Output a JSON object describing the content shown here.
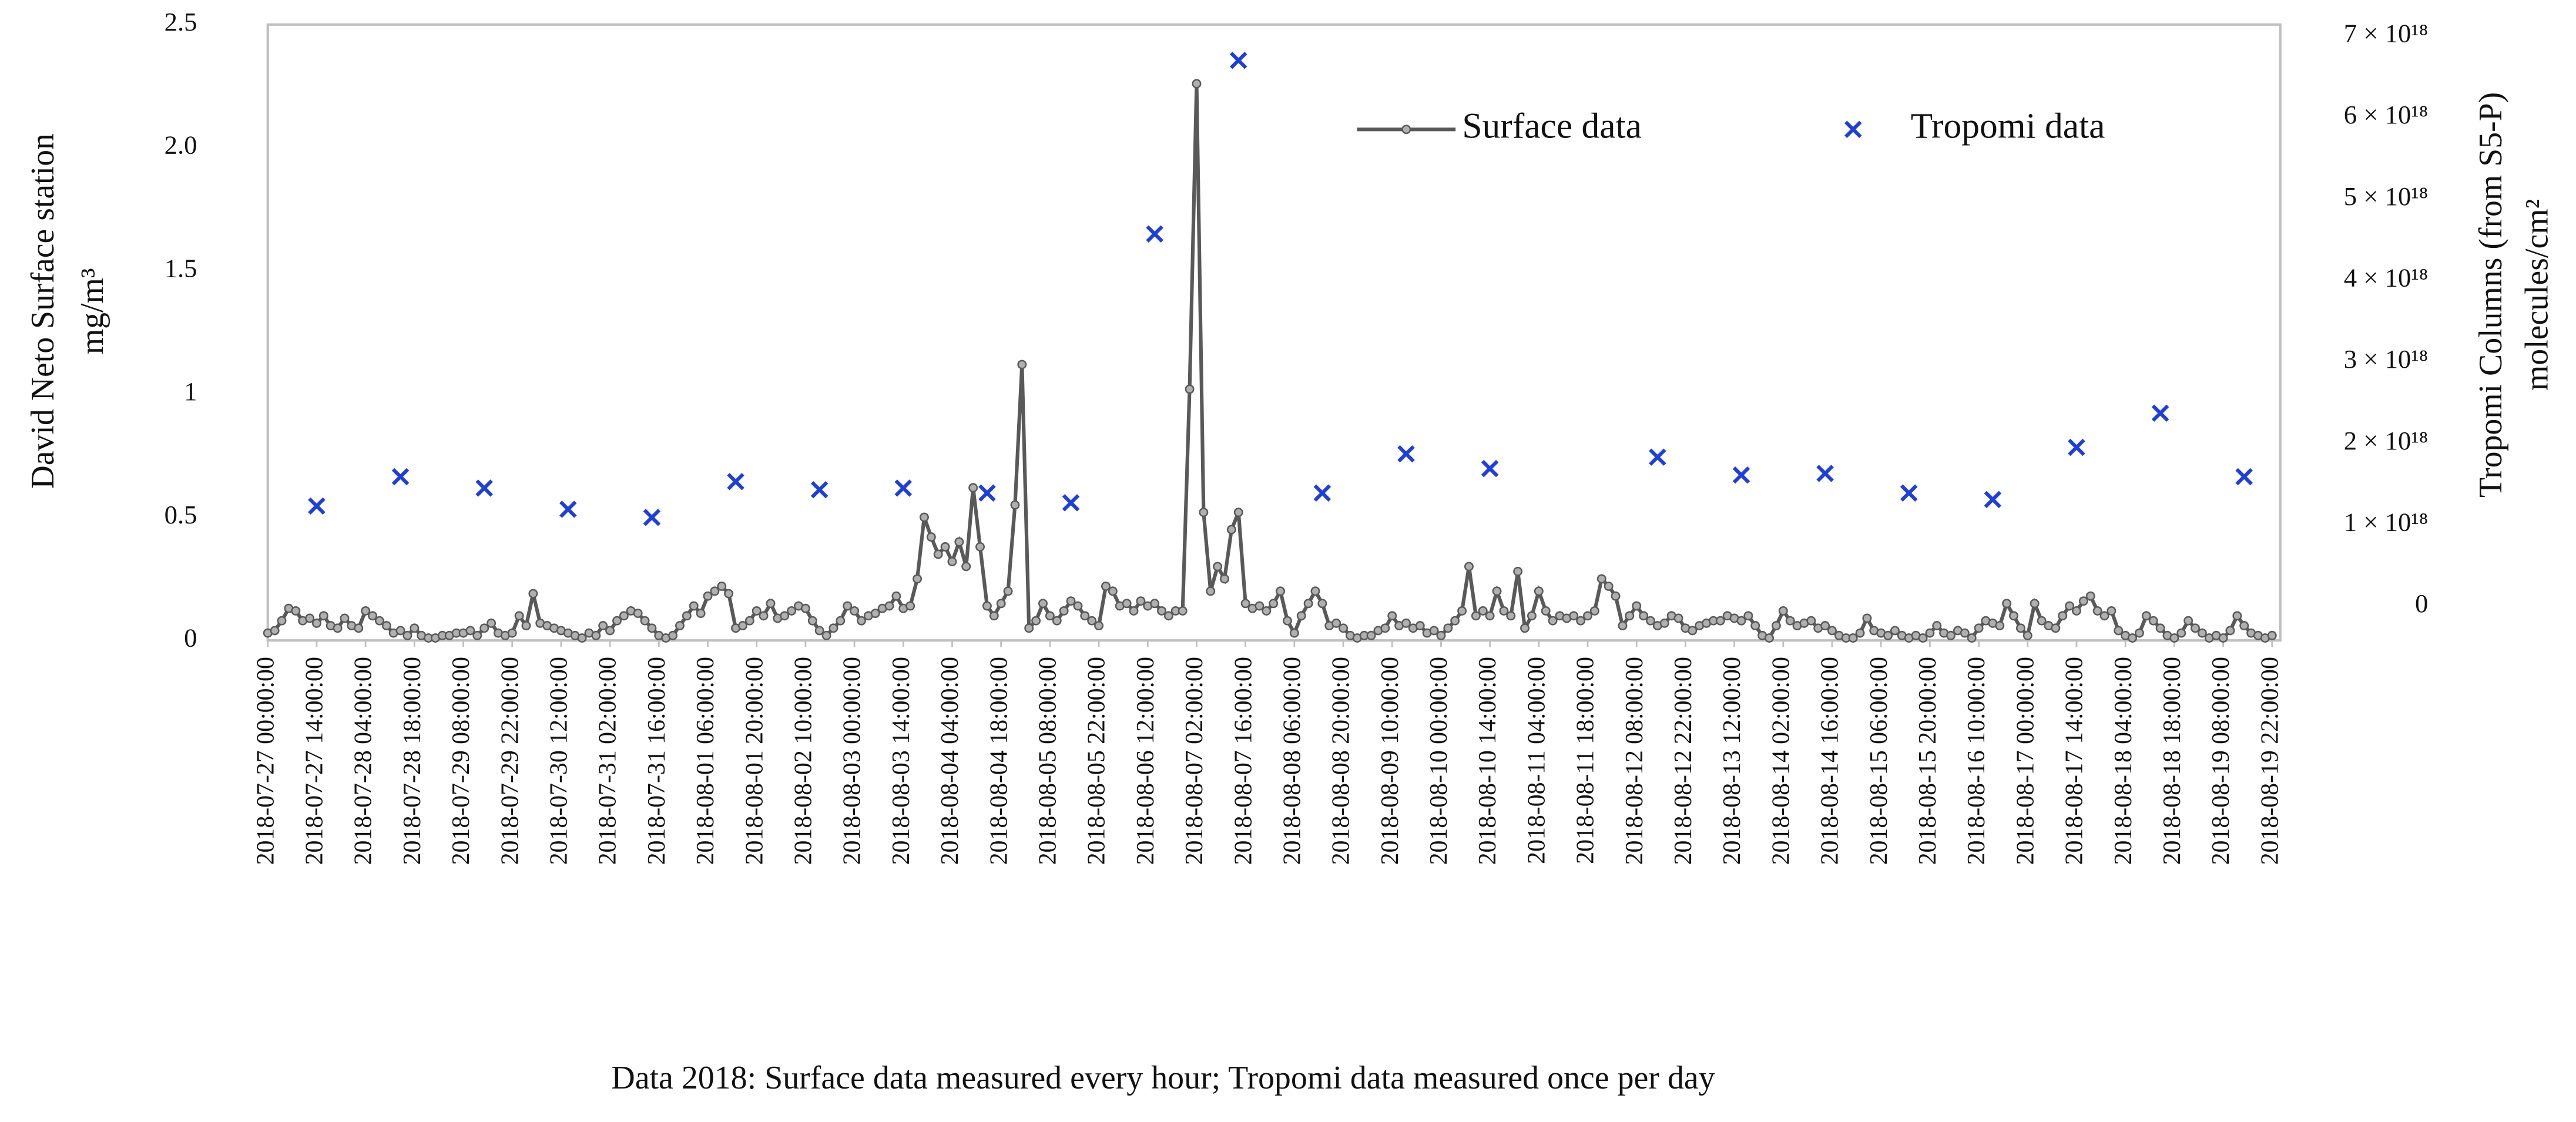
{
  "chart_data": {
    "type": "line",
    "y_label": "David Neto Surface station",
    "y_unit": "mg/m³",
    "y2_label": "Tropomi  Columns (from S5-P)",
    "y2_unit": "molecules/cm²",
    "caption": "Data 2018: Surface data measured every hour; Tropomi data measured once per day",
    "legend": "top-right",
    "grid": false,
    "ylim": [
      0,
      2.5
    ],
    "yticks": [
      0,
      0.5,
      1,
      1.5,
      {
        "value": 2,
        "label": "2.0"
      },
      2.5
    ],
    "y2lim": [
      -4.2e+17,
      7.14e+18
    ],
    "y2ticks": [
      0,
      {
        "value": 1e+18,
        "label": "1 × 10¹⁸"
      },
      {
        "value": 2e+18,
        "label": "2 × 10¹⁸"
      },
      {
        "value": 3e+18,
        "label": "3 × 10¹⁸"
      },
      {
        "value": 4e+18,
        "label": "4 × 10¹⁸"
      },
      {
        "value": 5e+18,
        "label": "5 × 10¹⁸"
      },
      {
        "value": 6e+18,
        "label": "6 × 10¹⁸"
      },
      {
        "value": 7e+18,
        "label": "7 × 10¹⁸"
      }
    ],
    "categories": [
      "2018-07-27 00:00:00",
      null,
      null,
      null,
      null,
      null,
      null,
      "2018-07-27 14:00:00",
      null,
      null,
      null,
      null,
      null,
      null,
      "2018-07-28 04:00:00",
      null,
      null,
      null,
      null,
      null,
      null,
      "2018-07-28 18:00:00",
      null,
      null,
      null,
      null,
      null,
      null,
      "2018-07-29 08:00:00",
      null,
      null,
      null,
      null,
      null,
      null,
      "2018-07-29 22:00:00",
      null,
      null,
      null,
      null,
      null,
      null,
      "2018-07-30 12:00:00",
      null,
      null,
      null,
      null,
      null,
      null,
      "2018-07-31 02:00:00",
      null,
      null,
      null,
      null,
      null,
      null,
      "2018-07-31 16:00:00",
      null,
      null,
      null,
      null,
      null,
      null,
      "2018-08-01 06:00:00",
      null,
      null,
      null,
      null,
      null,
      null,
      "2018-08-01 20:00:00",
      null,
      null,
      null,
      null,
      null,
      null,
      "2018-08-02 10:00:00",
      null,
      null,
      null,
      null,
      null,
      null,
      "2018-08-03 00:00:00",
      null,
      null,
      null,
      null,
      null,
      null,
      "2018-08-03 14:00:00",
      null,
      null,
      null,
      null,
      null,
      null,
      "2018-08-04 04:00:00",
      null,
      null,
      null,
      null,
      null,
      null,
      "2018-08-04 18:00:00",
      null,
      null,
      null,
      null,
      null,
      null,
      "2018-08-05 08:00:00",
      null,
      null,
      null,
      null,
      null,
      null,
      "2018-08-05 22:00:00",
      null,
      null,
      null,
      null,
      null,
      null,
      "2018-08-06 12:00:00",
      null,
      null,
      null,
      null,
      null,
      null,
      "2018-08-07 02:00:00",
      null,
      null,
      null,
      null,
      null,
      null,
      "2018-08-07 16:00:00",
      null,
      null,
      null,
      null,
      null,
      null,
      "2018-08-08 06:00:00",
      null,
      null,
      null,
      null,
      null,
      null,
      "2018-08-08 20:00:00",
      null,
      null,
      null,
      null,
      null,
      null,
      "2018-08-09 10:00:00",
      null,
      null,
      null,
      null,
      null,
      null,
      "2018-08-10 00:00:00",
      null,
      null,
      null,
      null,
      null,
      null,
      "2018-08-10 14:00:00",
      null,
      null,
      null,
      null,
      null,
      null,
      "2018-08-11 04:00:00",
      null,
      null,
      null,
      null,
      null,
      null,
      "2018-08-11 18:00:00",
      null,
      null,
      null,
      null,
      null,
      null,
      "2018-08-12 08:00:00",
      null,
      null,
      null,
      null,
      null,
      null,
      "2018-08-12 22:00:00",
      null,
      null,
      null,
      null,
      null,
      null,
      "2018-08-13 12:00:00",
      null,
      null,
      null,
      null,
      null,
      null,
      "2018-08-14 02:00:00",
      null,
      null,
      null,
      null,
      null,
      null,
      "2018-08-14 16:00:00",
      null,
      null,
      null,
      null,
      null,
      null,
      "2018-08-15 06:00:00",
      null,
      null,
      null,
      null,
      null,
      null,
      "2018-08-15 20:00:00",
      null,
      null,
      null,
      null,
      null,
      null,
      "2018-08-16 10:00:00",
      null,
      null,
      null,
      null,
      null,
      null,
      "2018-08-17 00:00:00",
      null,
      null,
      null,
      null,
      null,
      null,
      "2018-08-17 14:00:00",
      null,
      null,
      null,
      null,
      null,
      null,
      "2018-08-18 04:00:00",
      null,
      null,
      null,
      null,
      null,
      null,
      "2018-08-18 18:00:00",
      null,
      null,
      null,
      null,
      null,
      null,
      "2018-08-19 08:00:00",
      null,
      null,
      null,
      null,
      null,
      null,
      "2018-08-19 22:00:00"
    ],
    "series": [
      {
        "name": "Surface data",
        "color": "#595959",
        "values": [
          0.03,
          0.04,
          0.08,
          0.13,
          0.12,
          0.08,
          0.09,
          0.07,
          0.1,
          0.06,
          0.05,
          0.09,
          0.06,
          0.05,
          0.12,
          0.1,
          0.08,
          0.06,
          0.03,
          0.04,
          0.02,
          0.05,
          0.02,
          0.01,
          0.01,
          0.02,
          0.02,
          0.03,
          0.03,
          0.04,
          0.02,
          0.05,
          0.07,
          0.03,
          0.02,
          0.03,
          0.1,
          0.06,
          0.19,
          0.07,
          0.06,
          0.05,
          0.04,
          0.03,
          0.02,
          0.01,
          0.03,
          0.02,
          0.06,
          0.04,
          0.08,
          0.1,
          0.12,
          0.11,
          0.08,
          0.05,
          0.02,
          0.01,
          0.02,
          0.06,
          0.1,
          0.14,
          0.11,
          0.18,
          0.2,
          0.22,
          0.19,
          0.05,
          0.06,
          0.08,
          0.12,
          0.1,
          0.15,
          0.09,
          0.1,
          0.12,
          0.14,
          0.13,
          0.08,
          0.04,
          0.02,
          0.05,
          0.08,
          0.14,
          0.12,
          0.08,
          0.1,
          0.11,
          0.13,
          0.14,
          0.18,
          0.13,
          0.14,
          0.25,
          0.5,
          0.42,
          0.35,
          0.38,
          0.32,
          0.4,
          0.3,
          0.62,
          0.38,
          0.14,
          0.1,
          0.15,
          0.2,
          0.55,
          1.12,
          0.05,
          0.08,
          0.15,
          0.1,
          0.08,
          0.12,
          0.16,
          0.14,
          0.1,
          0.08,
          0.06,
          0.22,
          0.2,
          0.14,
          0.15,
          0.12,
          0.16,
          0.14,
          0.15,
          0.12,
          0.1,
          0.12,
          0.12,
          1.02,
          2.26,
          0.52,
          0.2,
          0.3,
          0.25,
          0.45,
          0.52,
          0.15,
          0.13,
          0.14,
          0.12,
          0.15,
          0.2,
          0.08,
          0.03,
          0.1,
          0.15,
          0.2,
          0.15,
          0.06,
          0.07,
          0.05,
          0.02,
          0.01,
          0.02,
          0.02,
          0.04,
          0.05,
          0.1,
          0.06,
          0.07,
          0.05,
          0.06,
          0.03,
          0.04,
          0.02,
          0.05,
          0.08,
          0.12,
          0.3,
          0.1,
          0.12,
          0.1,
          0.2,
          0.12,
          0.1,
          0.28,
          0.05,
          0.1,
          0.2,
          0.12,
          0.08,
          0.1,
          0.09,
          0.1,
          0.08,
          0.1,
          0.12,
          0.25,
          0.22,
          0.18,
          0.06,
          0.1,
          0.14,
          0.1,
          0.08,
          0.06,
          0.07,
          0.1,
          0.09,
          0.05,
          0.04,
          0.06,
          0.07,
          0.08,
          0.08,
          0.1,
          0.09,
          0.08,
          0.1,
          0.06,
          0.02,
          0.01,
          0.06,
          0.12,
          0.08,
          0.06,
          0.07,
          0.08,
          0.05,
          0.06,
          0.04,
          0.02,
          0.01,
          0.01,
          0.03,
          0.09,
          0.04,
          0.03,
          0.02,
          0.04,
          0.02,
          0.01,
          0.02,
          0.01,
          0.03,
          0.06,
          0.03,
          0.02,
          0.04,
          0.03,
          0.01,
          0.05,
          0.08,
          0.07,
          0.06,
          0.15,
          0.1,
          0.05,
          0.02,
          0.15,
          0.08,
          0.06,
          0.05,
          0.1,
          0.14,
          0.12,
          0.16,
          0.18,
          0.12,
          0.1,
          0.12,
          0.04,
          0.02,
          0.01,
          0.03,
          0.1,
          0.08,
          0.05,
          0.02,
          0.01,
          0.03,
          0.08,
          0.05,
          0.03,
          0.01,
          0.02,
          0.01,
          0.04,
          0.1,
          0.06,
          0.03,
          0.02,
          0.01,
          0.02
        ]
      },
      {
        "name": "Tropomi data",
        "color": "#1f3fd6",
        "type": "scatter",
        "axis": "y2",
        "values": [
          null,
          null,
          null,
          null,
          null,
          null,
          null,
          1.23e+18,
          null,
          null,
          null,
          null,
          null,
          null,
          null,
          null,
          null,
          null,
          null,
          1.59e+18,
          null,
          null,
          null,
          null,
          null,
          null,
          null,
          null,
          null,
          null,
          null,
          1.45e+18,
          null,
          null,
          null,
          null,
          null,
          null,
          null,
          null,
          null,
          null,
          null,
          1.19e+18,
          null,
          null,
          null,
          null,
          null,
          null,
          null,
          null,
          null,
          null,
          null,
          1.09e+18,
          null,
          null,
          null,
          null,
          null,
          null,
          null,
          null,
          null,
          null,
          null,
          1.53e+18,
          null,
          null,
          null,
          null,
          null,
          null,
          null,
          null,
          null,
          null,
          null,
          1.43e+18,
          null,
          null,
          null,
          null,
          null,
          null,
          null,
          null,
          null,
          null,
          null,
          1.45e+18,
          null,
          null,
          null,
          null,
          null,
          null,
          null,
          null,
          null,
          null,
          null,
          1.39e+18,
          null,
          null,
          null,
          null,
          null,
          null,
          null,
          null,
          null,
          null,
          null,
          1.27e+18,
          null,
          null,
          null,
          null,
          null,
          null,
          null,
          null,
          null,
          null,
          null,
          4.57e+18,
          null,
          null,
          null,
          null,
          null,
          null,
          null,
          null,
          null,
          null,
          null,
          6.7e+18,
          null,
          null,
          null,
          null,
          null,
          null,
          null,
          null,
          null,
          null,
          null,
          1.39e+18,
          null,
          null,
          null,
          null,
          null,
          null,
          null,
          null,
          null,
          null,
          null,
          1.87e+18,
          null,
          null,
          null,
          null,
          null,
          null,
          null,
          null,
          null,
          null,
          null,
          1.69e+18,
          null,
          null,
          null,
          null,
          null,
          null,
          null,
          null,
          null,
          null,
          null,
          null,
          null,
          null,
          null,
          null,
          null,
          null,
          null,
          null,
          null,
          null,
          null,
          1.83e+18,
          null,
          null,
          null,
          null,
          null,
          null,
          null,
          null,
          null,
          null,
          null,
          1.61e+18,
          null,
          null,
          null,
          null,
          null,
          null,
          null,
          null,
          null,
          null,
          null,
          1.63e+18,
          null,
          null,
          null,
          null,
          null,
          null,
          null,
          null,
          null,
          null,
          null,
          1.39e+18,
          null,
          null,
          null,
          null,
          null,
          null,
          null,
          null,
          null,
          null,
          null,
          1.31e+18,
          null,
          null,
          null,
          null,
          null,
          null,
          null,
          null,
          null,
          null,
          null,
          1.95e+18,
          null,
          null,
          null,
          null,
          null,
          null,
          null,
          null,
          null,
          null,
          null,
          2.37e+18,
          null,
          null,
          null,
          null,
          null,
          null,
          null,
          null,
          null,
          null,
          null,
          1.59e+18,
          null,
          null,
          null,
          null
        ]
      }
    ]
  }
}
